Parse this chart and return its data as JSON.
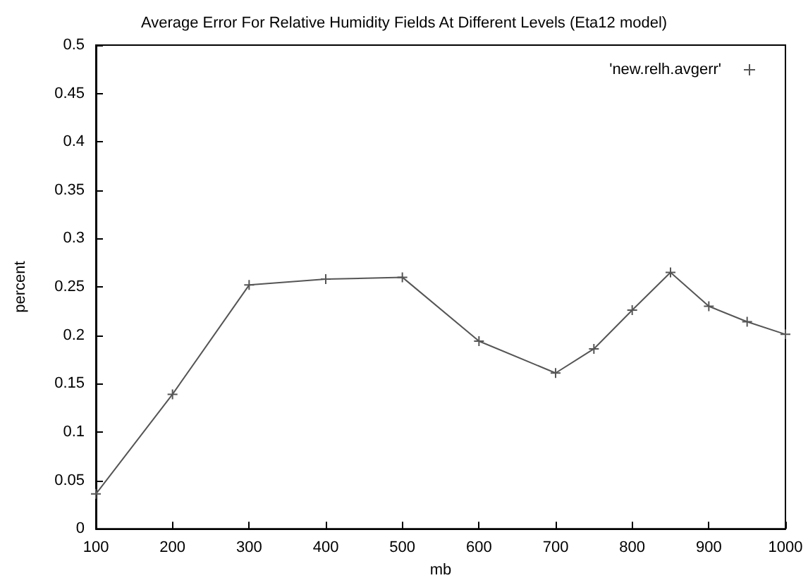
{
  "chart_data": {
    "type": "line",
    "title": "Average Error For Relative Humidity Fields At Different Levels (Eta12 model)",
    "xlabel": "mb",
    "ylabel": "percent",
    "x": [
      100,
      200,
      300,
      400,
      500,
      600,
      700,
      750,
      800,
      850,
      900,
      950,
      1000
    ],
    "series": [
      {
        "name": "'new.relh.avgerr'",
        "color": "#555555",
        "values": [
          0.036,
          0.139,
          0.252,
          0.258,
          0.26,
          0.194,
          0.161,
          0.186,
          0.226,
          0.265,
          0.23,
          0.214,
          0.201
        ]
      }
    ],
    "xlim": [
      100,
      1000
    ],
    "xticks": [
      100,
      200,
      300,
      400,
      500,
      600,
      700,
      800,
      900,
      1000
    ],
    "ylim": [
      0,
      0.5
    ],
    "yticks": [
      0,
      0.05,
      0.1,
      0.15,
      0.2,
      0.25,
      0.3,
      0.35,
      0.4,
      0.45,
      0.5
    ],
    "grid": false,
    "legend": "top right",
    "marker": "cross",
    "line_style": "solid"
  }
}
